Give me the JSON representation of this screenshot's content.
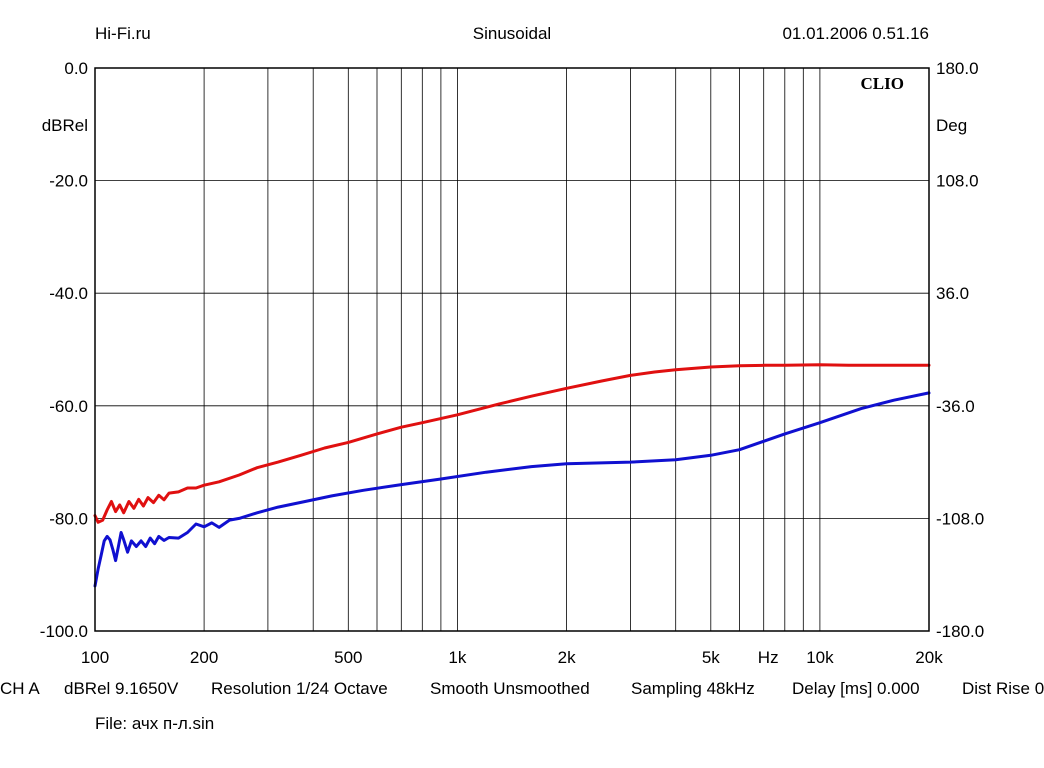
{
  "header": {
    "left": "Hi-Fi.ru",
    "center": "Sinusoidal",
    "right": "01.01.2006 0.51.16"
  },
  "chart_data": {
    "type": "line",
    "logo": "CLIO",
    "x_scale": "log",
    "xlim": [
      100,
      20000
    ],
    "x_ticks": [
      {
        "value": 100,
        "label": "100"
      },
      {
        "value": 200,
        "label": "200"
      },
      {
        "value": 500,
        "label": "500"
      },
      {
        "value": 1000,
        "label": "1k"
      },
      {
        "value": 2000,
        "label": "2k"
      },
      {
        "value": 5000,
        "label": "5k"
      },
      {
        "value": 10000,
        "label": "10k"
      },
      {
        "value": 20000,
        "label": "20k"
      }
    ],
    "x_unit_label": "Hz",
    "x_unit_position": 7200,
    "ylim_left": [
      -100,
      0
    ],
    "left_ticks": [
      "0.0",
      "-20.0",
      "-40.0",
      "-60.0",
      "-80.0",
      "-100.0"
    ],
    "left_unit": "dBRel",
    "ylim_right": [
      -180,
      180
    ],
    "right_ticks": [
      "180.0",
      "108.0",
      "36.0",
      "-36.0",
      "-108.0",
      "-180.0"
    ],
    "right_unit": "Deg",
    "series": [
      {
        "name": "red",
        "color": "#e01010",
        "points": [
          [
            100,
            -79.5
          ],
          [
            102,
            -80.7
          ],
          [
            105,
            -80.3
          ],
          [
            108,
            -78.5
          ],
          [
            111,
            -77.0
          ],
          [
            114,
            -78.8
          ],
          [
            117,
            -77.6
          ],
          [
            120,
            -79.0
          ],
          [
            124,
            -77.0
          ],
          [
            128,
            -78.2
          ],
          [
            132,
            -76.6
          ],
          [
            136,
            -77.8
          ],
          [
            140,
            -76.3
          ],
          [
            145,
            -77.2
          ],
          [
            150,
            -75.9
          ],
          [
            155,
            -76.7
          ],
          [
            160,
            -75.5
          ],
          [
            170,
            -75.3
          ],
          [
            180,
            -74.6
          ],
          [
            190,
            -74.6
          ],
          [
            200,
            -74.1
          ],
          [
            220,
            -73.5
          ],
          [
            250,
            -72.3
          ],
          [
            280,
            -71.0
          ],
          [
            320,
            -70.0
          ],
          [
            370,
            -68.8
          ],
          [
            430,
            -67.5
          ],
          [
            500,
            -66.5
          ],
          [
            600,
            -65.0
          ],
          [
            700,
            -63.8
          ],
          [
            800,
            -63.0
          ],
          [
            1000,
            -61.6
          ],
          [
            1300,
            -59.7
          ],
          [
            1600,
            -58.3
          ],
          [
            2000,
            -56.9
          ],
          [
            2500,
            -55.6
          ],
          [
            3000,
            -54.6
          ],
          [
            3500,
            -54.0
          ],
          [
            4000,
            -53.6
          ],
          [
            5000,
            -53.1
          ],
          [
            6000,
            -52.9
          ],
          [
            7000,
            -52.8
          ],
          [
            8000,
            -52.8
          ],
          [
            10000,
            -52.7
          ],
          [
            12000,
            -52.8
          ],
          [
            15000,
            -52.8
          ],
          [
            20000,
            -52.8
          ]
        ]
      },
      {
        "name": "blue",
        "color": "#1010d0",
        "points": [
          [
            100,
            -92.0
          ],
          [
            102,
            -89.0
          ],
          [
            104,
            -86.5
          ],
          [
            106,
            -84.0
          ],
          [
            108,
            -83.2
          ],
          [
            110,
            -83.8
          ],
          [
            112,
            -85.5
          ],
          [
            114,
            -87.5
          ],
          [
            116,
            -85.0
          ],
          [
            118,
            -82.5
          ],
          [
            120,
            -83.8
          ],
          [
            123,
            -86.0
          ],
          [
            126,
            -84.0
          ],
          [
            130,
            -85.0
          ],
          [
            134,
            -84.0
          ],
          [
            138,
            -85.0
          ],
          [
            142,
            -83.5
          ],
          [
            146,
            -84.5
          ],
          [
            150,
            -83.2
          ],
          [
            155,
            -83.9
          ],
          [
            160,
            -83.4
          ],
          [
            170,
            -83.5
          ],
          [
            180,
            -82.5
          ],
          [
            190,
            -81.0
          ],
          [
            200,
            -81.5
          ],
          [
            210,
            -80.8
          ],
          [
            220,
            -81.6
          ],
          [
            235,
            -80.3
          ],
          [
            250,
            -80.0
          ],
          [
            280,
            -79.0
          ],
          [
            320,
            -78.0
          ],
          [
            380,
            -77.0
          ],
          [
            450,
            -76.0
          ],
          [
            550,
            -75.0
          ],
          [
            700,
            -74.0
          ],
          [
            900,
            -73.0
          ],
          [
            1200,
            -71.8
          ],
          [
            1600,
            -70.8
          ],
          [
            2000,
            -70.3
          ],
          [
            3000,
            -70.0
          ],
          [
            4000,
            -69.6
          ],
          [
            5000,
            -68.8
          ],
          [
            6000,
            -67.8
          ],
          [
            8000,
            -65.0
          ],
          [
            10000,
            -63.0
          ],
          [
            13000,
            -60.5
          ],
          [
            16000,
            -59.0
          ],
          [
            20000,
            -57.7
          ]
        ]
      }
    ]
  },
  "footer": {
    "channel": "CH A",
    "level": "dBRel 9.1650V",
    "resolution": "Resolution 1/24 Octave",
    "smooth": "Smooth Unsmoothed",
    "sampling": "Sampling 48kHz",
    "delay": "Delay [ms] 0.000",
    "dist": "Dist Rise 0",
    "file": "File: ачх п-л.sin"
  }
}
